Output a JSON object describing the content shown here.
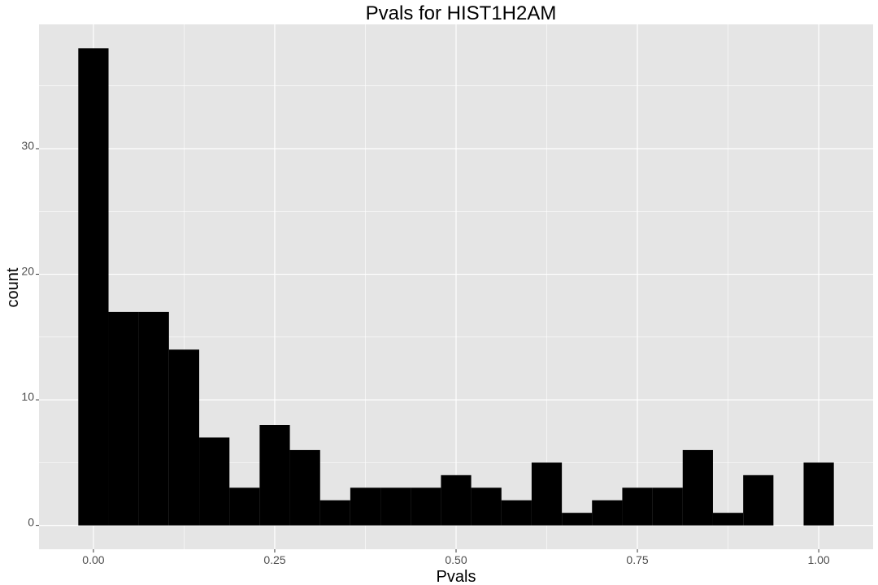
{
  "chart_data": {
    "type": "bar",
    "title": "Pvals for HIST1H2AM",
    "xlabel": "Pvals",
    "ylabel": "count",
    "bin_width": 0.0417,
    "x": [
      0.0,
      0.0417,
      0.0833,
      0.125,
      0.1667,
      0.2083,
      0.25,
      0.2917,
      0.3333,
      0.375,
      0.4167,
      0.4583,
      0.5,
      0.5417,
      0.5833,
      0.625,
      0.6667,
      0.7083,
      0.75,
      0.7917,
      0.8333,
      0.875,
      0.9167,
      0.9583,
      1.0
    ],
    "values": [
      38,
      17,
      17,
      14,
      7,
      3,
      8,
      6,
      2,
      3,
      3,
      3,
      4,
      3,
      2,
      5,
      1,
      2,
      3,
      3,
      6,
      1,
      4,
      0,
      5
    ],
    "xlim": [
      -0.075,
      1.075
    ],
    "ylim": [
      -1.9,
      39.9
    ],
    "x_ticks": [
      0.0,
      0.25,
      0.5,
      0.75,
      1.0
    ],
    "x_tick_labels": [
      "0.00",
      "0.25",
      "0.50",
      "0.75",
      "1.00"
    ],
    "y_ticks": [
      0,
      10,
      20,
      30
    ],
    "y_tick_labels": [
      "0",
      "10",
      "20",
      "30"
    ],
    "grid": true,
    "colors": {
      "bar": "#000000",
      "panel_background": "#e5e5e5",
      "grid": "#ffffff"
    }
  }
}
